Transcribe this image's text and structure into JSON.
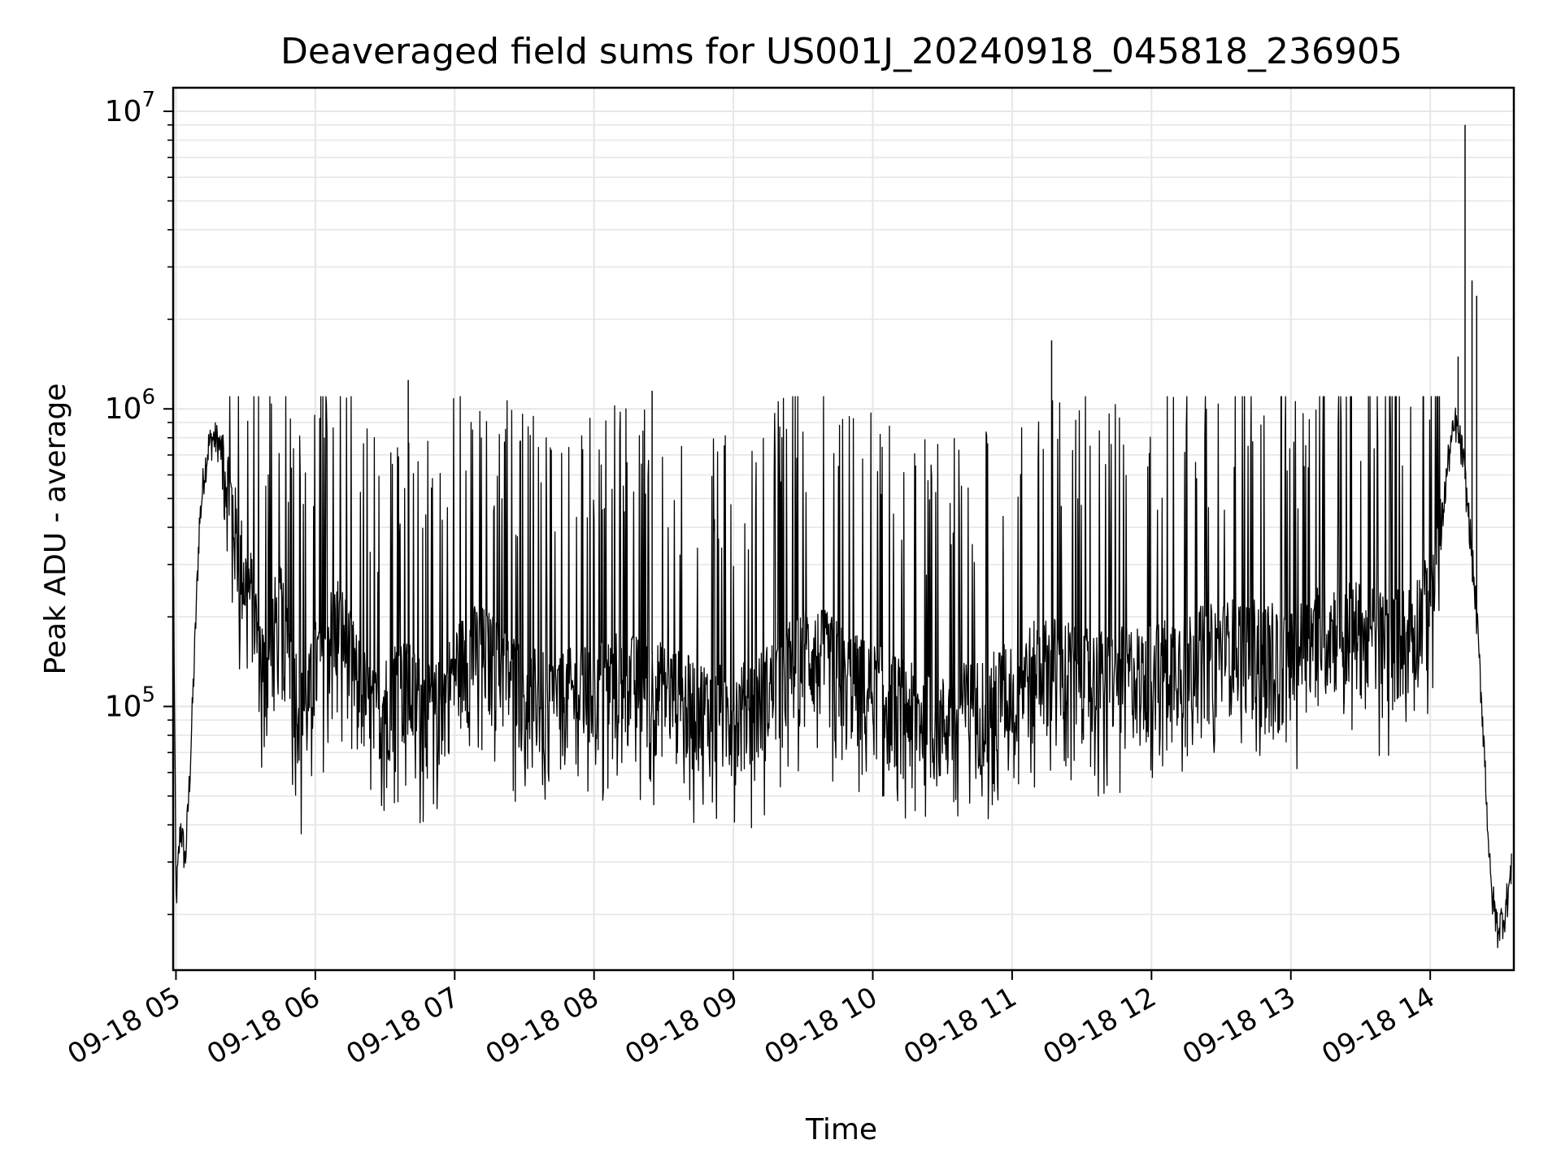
{
  "chart_data": {
    "type": "line",
    "title": "Deaveraged field sums for US001J_20240918_045818_236905",
    "xlabel": "Time",
    "ylabel": "Peak ADU - average",
    "y_scale": "log",
    "ylim": [
      13000,
      12000000
    ],
    "xlim": [
      "2024-09-18 04:58:48",
      "2024-09-18 14:36:00"
    ],
    "grid": true,
    "legend": "none",
    "line_color": "#000000",
    "grid_color": "#e6e6e6",
    "x_ticks": [
      {
        "value": "2024-09-18 05:00",
        "label": "09-18 05"
      },
      {
        "value": "2024-09-18 06:00",
        "label": "09-18 06"
      },
      {
        "value": "2024-09-18 07:00",
        "label": "09-18 07"
      },
      {
        "value": "2024-09-18 08:00",
        "label": "09-18 08"
      },
      {
        "value": "2024-09-18 09:00",
        "label": "09-18 09"
      },
      {
        "value": "2024-09-18 10:00",
        "label": "09-18 10"
      },
      {
        "value": "2024-09-18 11:00",
        "label": "09-18 11"
      },
      {
        "value": "2024-09-18 12:00",
        "label": "09-18 12"
      },
      {
        "value": "2024-09-18 13:00",
        "label": "09-18 13"
      },
      {
        "value": "2024-09-18 14:00",
        "label": "09-18 14"
      }
    ],
    "y_ticks": [
      {
        "value": 100000,
        "base": "10",
        "exp": "5"
      },
      {
        "value": 1000000,
        "base": "10",
        "exp": "6"
      },
      {
        "value": 10000000,
        "base": "10",
        "exp": "7"
      }
    ],
    "series": [
      {
        "x": [
          "2024-09-18 04:59",
          "2024-09-18 05:00",
          "2024-09-18 05:02",
          "2024-09-18 05:04",
          "2024-09-18 05:06",
          "2024-09-18 05:08",
          "2024-09-18 05:10",
          "2024-09-18 05:12",
          "2024-09-18 05:14",
          "2024-09-18 05:16",
          "2024-09-18 05:18",
          "2024-09-18 05:20",
          "2024-09-18 05:22",
          "2024-09-18 05:24",
          "2024-09-18 05:26",
          "2024-09-18 05:28",
          "2024-09-18 05:30",
          "2024-09-18 05:33",
          "2024-09-18 05:36",
          "2024-09-18 05:39",
          "2024-09-18 05:42",
          "2024-09-18 05:45",
          "2024-09-18 05:48",
          "2024-09-18 05:51",
          "2024-09-18 05:54",
          "2024-09-18 05:57",
          "2024-09-18 06:00",
          "2024-09-18 06:05",
          "2024-09-18 06:10",
          "2024-09-18 06:15",
          "2024-09-18 06:20",
          "2024-09-18 06:25",
          "2024-09-18 06:30",
          "2024-09-18 06:35",
          "2024-09-18 06:40",
          "2024-09-18 06:45",
          "2024-09-18 06:50",
          "2024-09-18 06:55",
          "2024-09-18 07:00",
          "2024-09-18 07:10",
          "2024-09-18 07:20",
          "2024-09-18 07:30",
          "2024-09-18 07:40",
          "2024-09-18 07:50",
          "2024-09-18 08:00",
          "2024-09-18 08:10",
          "2024-09-18 08:20",
          "2024-09-18 08:30",
          "2024-09-18 08:40",
          "2024-09-18 08:50",
          "2024-09-18 09:00",
          "2024-09-18 09:10",
          "2024-09-18 09:20",
          "2024-09-18 09:30",
          "2024-09-18 09:40",
          "2024-09-18 09:50",
          "2024-09-18 10:00",
          "2024-09-18 10:10",
          "2024-09-18 10:20",
          "2024-09-18 10:30",
          "2024-09-18 10:40",
          "2024-09-18 10:50",
          "2024-09-18 11:00",
          "2024-09-18 11:10",
          "2024-09-18 11:20",
          "2024-09-18 11:30",
          "2024-09-18 11:40",
          "2024-09-18 11:50",
          "2024-09-18 12:00",
          "2024-09-18 12:10",
          "2024-09-18 12:20",
          "2024-09-18 12:30",
          "2024-09-18 12:40",
          "2024-09-18 12:50",
          "2024-09-18 13:00",
          "2024-09-18 13:10",
          "2024-09-18 13:20",
          "2024-09-18 13:30",
          "2024-09-18 13:40",
          "2024-09-18 13:50",
          "2024-09-18 14:00",
          "2024-09-18 14:04",
          "2024-09-18 14:08",
          "2024-09-18 14:11",
          "2024-09-18 14:14",
          "2024-09-18 14:17",
          "2024-09-18 14:20",
          "2024-09-18 14:23",
          "2024-09-18 14:26",
          "2024-09-18 14:29",
          "2024-09-18 14:32",
          "2024-09-18 14:35"
        ],
        "y": [
          260000,
          22000,
          40000,
          30000,
          60000,
          150000,
          400000,
          600000,
          750000,
          800000,
          780000,
          700000,
          550000,
          450000,
          350000,
          300000,
          250000,
          220000,
          150000,
          120000,
          180000,
          200000,
          160000,
          120000,
          90000,
          100000,
          130000,
          160000,
          190000,
          140000,
          110000,
          90000,
          100000,
          120000,
          110000,
          100000,
          90000,
          100000,
          130000,
          150000,
          130000,
          110000,
          100000,
          105000,
          110000,
          120000,
          115000,
          110000,
          100000,
          95000,
          90000,
          100000,
          120000,
          150000,
          140000,
          120000,
          110000,
          100000,
          90000,
          85000,
          95000,
          100000,
          115000,
          130000,
          135000,
          125000,
          120000,
          125000,
          130000,
          140000,
          145000,
          150000,
          160000,
          150000,
          140000,
          170000,
          180000,
          175000,
          165000,
          170000,
          220000,
          350000,
          700000,
          900000,
          700000,
          400000,
          200000,
          80000,
          25000,
          18000,
          20000,
          28000
        ]
      }
    ],
    "annotations_peaks": [
      {
        "x": "2024-09-18 14:15",
        "y": 9000000
      },
      {
        "x": "2024-09-18 14:18",
        "y": 2700000
      },
      {
        "x": "2024-09-18 14:20",
        "y": 2400000
      },
      {
        "x": "2024-09-18 14:12",
        "y": 1500000
      },
      {
        "x": "2024-09-18 11:17",
        "y": 1700000
      },
      {
        "x": "2024-09-18 06:40",
        "y": 1250000
      },
      {
        "x": "2024-09-18 08:25",
        "y": 1150000
      }
    ],
    "noise": {
      "low": 45000,
      "high": 1000000
    }
  }
}
